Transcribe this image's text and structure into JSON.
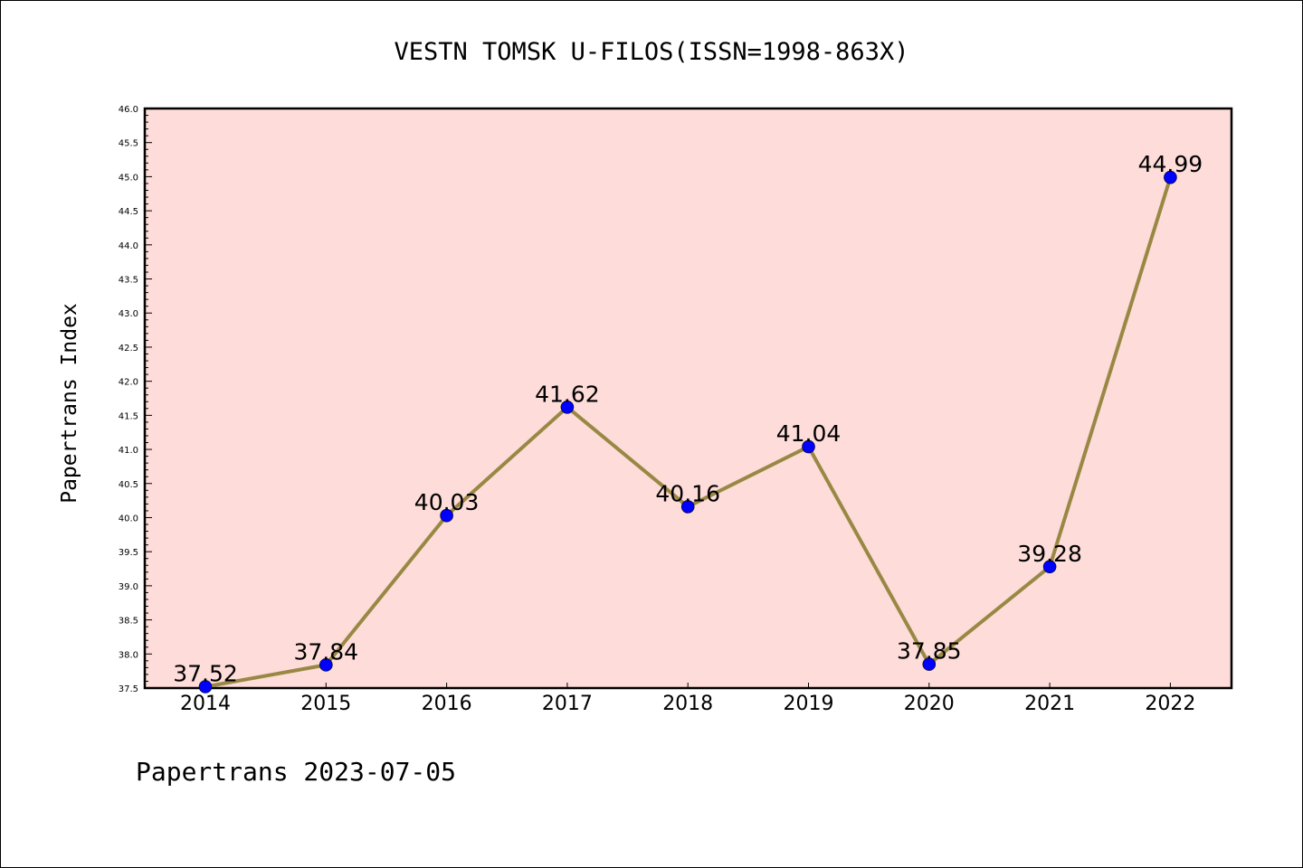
{
  "chart_data": {
    "type": "line",
    "title": "VESTN TOMSK U-FILOS(ISSN=1998-863X)",
    "xlabel": "",
    "ylabel": "Papertrans Index",
    "categories": [
      "2014",
      "2015",
      "2016",
      "2017",
      "2018",
      "2019",
      "2020",
      "2021",
      "2022"
    ],
    "series": [
      {
        "values": [
          37.52,
          37.84,
          40.03,
          41.62,
          40.16,
          41.04,
          37.85,
          39.28,
          44.99
        ],
        "data_labels": [
          "37.52",
          "37.84",
          "40.03",
          "41.62",
          "40.16",
          "41.04",
          "37.85",
          "39.28",
          "44.99"
        ],
        "line_color": "#998844",
        "marker_color": "#0000ff"
      }
    ],
    "ylim": [
      37.5,
      46.0
    ],
    "yticks": [
      "37.5",
      "38.0",
      "38.5",
      "39.0",
      "39.5",
      "40.0",
      "40.5",
      "41.0",
      "41.5",
      "42.0",
      "42.5",
      "43.0",
      "43.5",
      "44.0",
      "44.5",
      "45.0",
      "45.5",
      "46.0"
    ],
    "grid": false,
    "background_color": "#fddcd9"
  },
  "footer": "Papertrans 2023-07-05"
}
